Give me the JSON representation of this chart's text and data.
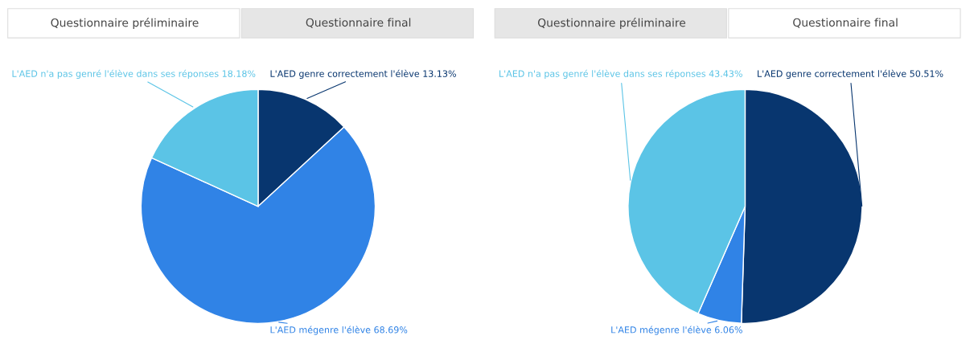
{
  "chart_data": [
    {
      "type": "pie",
      "annotations": [
        "Questionnaire préliminaire",
        "Questionnaire final"
      ],
      "categories": [
        "L'AED genre correctement l'élève",
        "L'AED mégenre l'élève",
        "L'AED n'a pas genré l'élève dans ses réponses"
      ],
      "values": [
        13.13,
        68.69,
        18.18
      ],
      "value_labels": [
        "13.13%",
        "68.69%",
        "18.18%"
      ],
      "colors": [
        "#08366f",
        "#3083e6",
        "#5bc4e6"
      ]
    },
    {
      "type": "pie",
      "annotations": [
        "Questionnaire préliminaire",
        "Questionnaire final"
      ],
      "categories": [
        "L'AED genre correctement l'élève",
        "L'AED mégenre l'élève",
        "L'AED n'a pas genré l'élève dans ses réponses"
      ],
      "values": [
        50.51,
        6.06,
        43.43
      ],
      "value_labels": [
        "50.51%",
        "6.06%",
        "43.43%"
      ],
      "colors": [
        "#08366f",
        "#3083e6",
        "#5bc4e6"
      ]
    }
  ]
}
